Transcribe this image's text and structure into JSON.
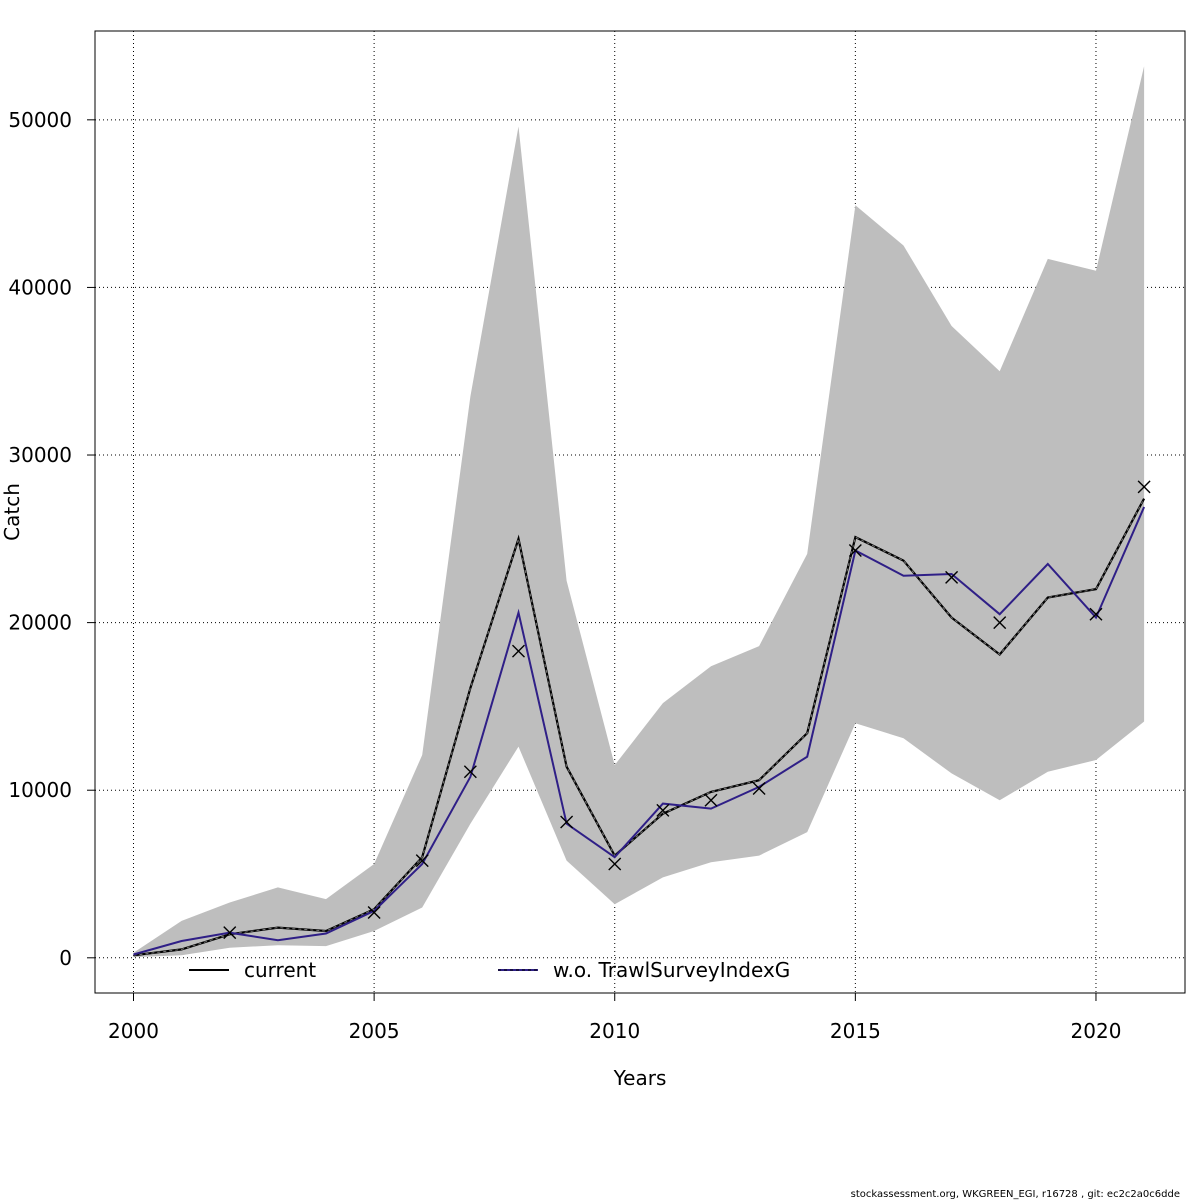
{
  "chart_data": {
    "type": "line",
    "xlabel": "Years",
    "ylabel": "Catch",
    "xlim": [
      1999.2,
      2021.85
    ],
    "ylim": [
      -2100,
      55300
    ],
    "x_ticks": [
      2000,
      2005,
      2010,
      2015,
      2020
    ],
    "y_ticks": [
      0,
      10000,
      20000,
      30000,
      40000,
      50000
    ],
    "grid": true,
    "x": [
      2000,
      2001,
      2002,
      2003,
      2004,
      2005,
      2006,
      2007,
      2008,
      2009,
      2010,
      2011,
      2012,
      2013,
      2014,
      2015,
      2016,
      2017,
      2018,
      2019,
      2020,
      2021
    ],
    "confidence_band": {
      "lower": [
        40,
        150,
        600,
        750,
        700,
        1600,
        3000,
        8000,
        12600,
        5800,
        3200,
        4800,
        5700,
        6100,
        7500,
        14000,
        13100,
        11000,
        9400,
        11100,
        11800,
        14100
      ],
      "upper": [
        300,
        2200,
        3300,
        4200,
        3500,
        5600,
        12100,
        33500,
        49600,
        22500,
        11500,
        15200,
        17400,
        18600,
        24100,
        44900,
        42500,
        37700,
        35000,
        41700,
        41000,
        53200
      ]
    },
    "series": [
      {
        "name": "current",
        "color": "#000000",
        "values": [
          150,
          500,
          1400,
          1800,
          1600,
          2900,
          6000,
          16100,
          25000,
          11400,
          6100,
          8600,
          9900,
          10600,
          13400,
          25100,
          23700,
          20300,
          18100,
          21500,
          22000,
          27400
        ]
      },
      {
        "name": "w.o. TrawlSurveyIndexG",
        "color": "#2f1f87",
        "values": [
          200,
          1000,
          1500,
          1050,
          1450,
          2800,
          5600,
          10800,
          20600,
          8000,
          6000,
          9200,
          8900,
          10200,
          12000,
          24300,
          22800,
          22900,
          20500,
          23500,
          20300,
          26900
        ]
      }
    ],
    "observations": {
      "marker": "x",
      "x": [
        2002,
        2005,
        2006,
        2007,
        2008,
        2009,
        2010,
        2011,
        2012,
        2013,
        2015,
        2017,
        2018,
        2020,
        2021
      ],
      "values": [
        1500,
        2700,
        5800,
        11100,
        18300,
        8100,
        5600,
        8800,
        9400,
        10100,
        24300,
        22700,
        20000,
        20500,
        28100
      ]
    },
    "legend": {
      "placement": "bottom",
      "entries": [
        "current",
        "w.o. TrawlSurveyIndexG"
      ]
    }
  },
  "footer": {
    "text": "stockassessment.org, WKGREEN_EGI, r16728 , git: ec2c2a0c6dde"
  }
}
